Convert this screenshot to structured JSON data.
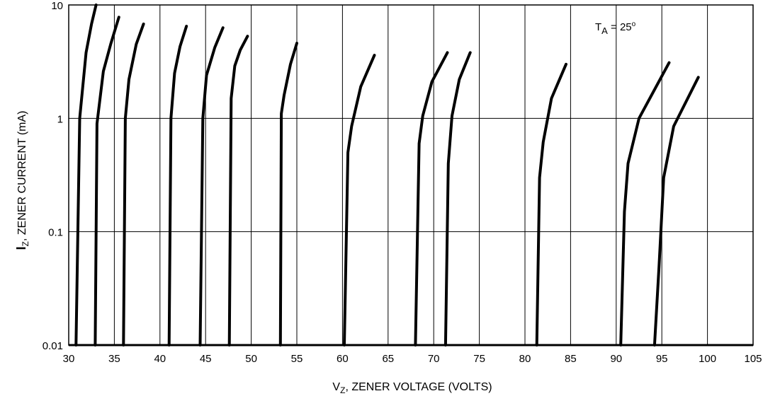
{
  "chart_data": {
    "type": "line",
    "title": "",
    "xlabel": {
      "main": "V",
      "sub": "Z",
      "rest": ", ZENER VOLTAGE (VOLTS)"
    },
    "ylabel": {
      "main": "I",
      "sub": "Z",
      "rest": ", ZENER CURRENT (mA)"
    },
    "annotation": {
      "main": "T",
      "sub": "A",
      "rest": " = 25",
      "sup": "o"
    },
    "xlim": [
      30,
      105
    ],
    "ylim": [
      0.01,
      10
    ],
    "yscale": "log",
    "grid": true,
    "x_ticks": [
      30,
      35,
      40,
      45,
      50,
      55,
      60,
      65,
      70,
      75,
      80,
      85,
      90,
      95,
      100,
      105
    ],
    "x_tick_labels": [
      "30",
      "35",
      "40",
      "45",
      "50",
      "55",
      "60",
      "65",
      "70",
      "75",
      "80",
      "85",
      "90",
      "95",
      "100",
      "105"
    ],
    "y_ticks": [
      0.01,
      0.1,
      1,
      10
    ],
    "y_tick_labels": [
      "0.01",
      "0.1",
      "1",
      "10"
    ],
    "line_color": "#000000",
    "series": [
      {
        "x": [
          30.8,
          31.2,
          31.9,
          32.5,
          33.0
        ],
        "y": [
          0.01,
          1.0,
          3.8,
          6.8,
          10.0
        ]
      },
      {
        "x": [
          32.9,
          33.1,
          33.8,
          34.6,
          35.5
        ],
        "y": [
          0.01,
          0.9,
          2.6,
          4.5,
          7.8
        ]
      },
      {
        "x": [
          36.0,
          36.2,
          36.6,
          37.4,
          38.2
        ],
        "y": [
          0.01,
          1.0,
          2.2,
          4.5,
          6.8
        ]
      },
      {
        "x": [
          41.0,
          41.2,
          41.6,
          42.2,
          42.9
        ],
        "y": [
          0.01,
          1.0,
          2.5,
          4.3,
          6.5
        ]
      },
      {
        "x": [
          44.4,
          44.7,
          45.1,
          46.0,
          46.9
        ],
        "y": [
          0.01,
          1.0,
          2.4,
          4.2,
          6.3
        ]
      },
      {
        "x": [
          47.6,
          47.8,
          48.2,
          48.8,
          49.6
        ],
        "y": [
          0.01,
          1.5,
          2.9,
          4.0,
          5.3
        ]
      },
      {
        "x": [
          53.2,
          53.3,
          53.6,
          54.3,
          55.0
        ],
        "y": [
          0.01,
          1.1,
          1.6,
          3.0,
          4.6
        ]
      },
      {
        "x": [
          60.2,
          60.6,
          61.0,
          62.0,
          63.5
        ],
        "y": [
          0.01,
          0.5,
          0.85,
          1.9,
          3.6
        ]
      },
      {
        "x": [
          68.0,
          68.4,
          68.8,
          69.8,
          71.5
        ],
        "y": [
          0.01,
          0.6,
          1.05,
          2.1,
          3.8
        ]
      },
      {
        "x": [
          71.3,
          71.6,
          72.0,
          72.8,
          74.0
        ],
        "y": [
          0.01,
          0.4,
          1.05,
          2.2,
          3.8
        ]
      },
      {
        "x": [
          81.3,
          81.6,
          82.0,
          82.9,
          84.5
        ],
        "y": [
          0.01,
          0.3,
          0.62,
          1.5,
          3.0
        ]
      },
      {
        "x": [
          90.5,
          90.9,
          91.3,
          92.5,
          95.8
        ],
        "y": [
          0.01,
          0.15,
          0.4,
          1.0,
          3.1
        ]
      },
      {
        "x": [
          94.2,
          94.7,
          95.2,
          96.3,
          99.0
        ],
        "y": [
          0.01,
          0.05,
          0.3,
          0.85,
          2.3
        ]
      }
    ]
  }
}
